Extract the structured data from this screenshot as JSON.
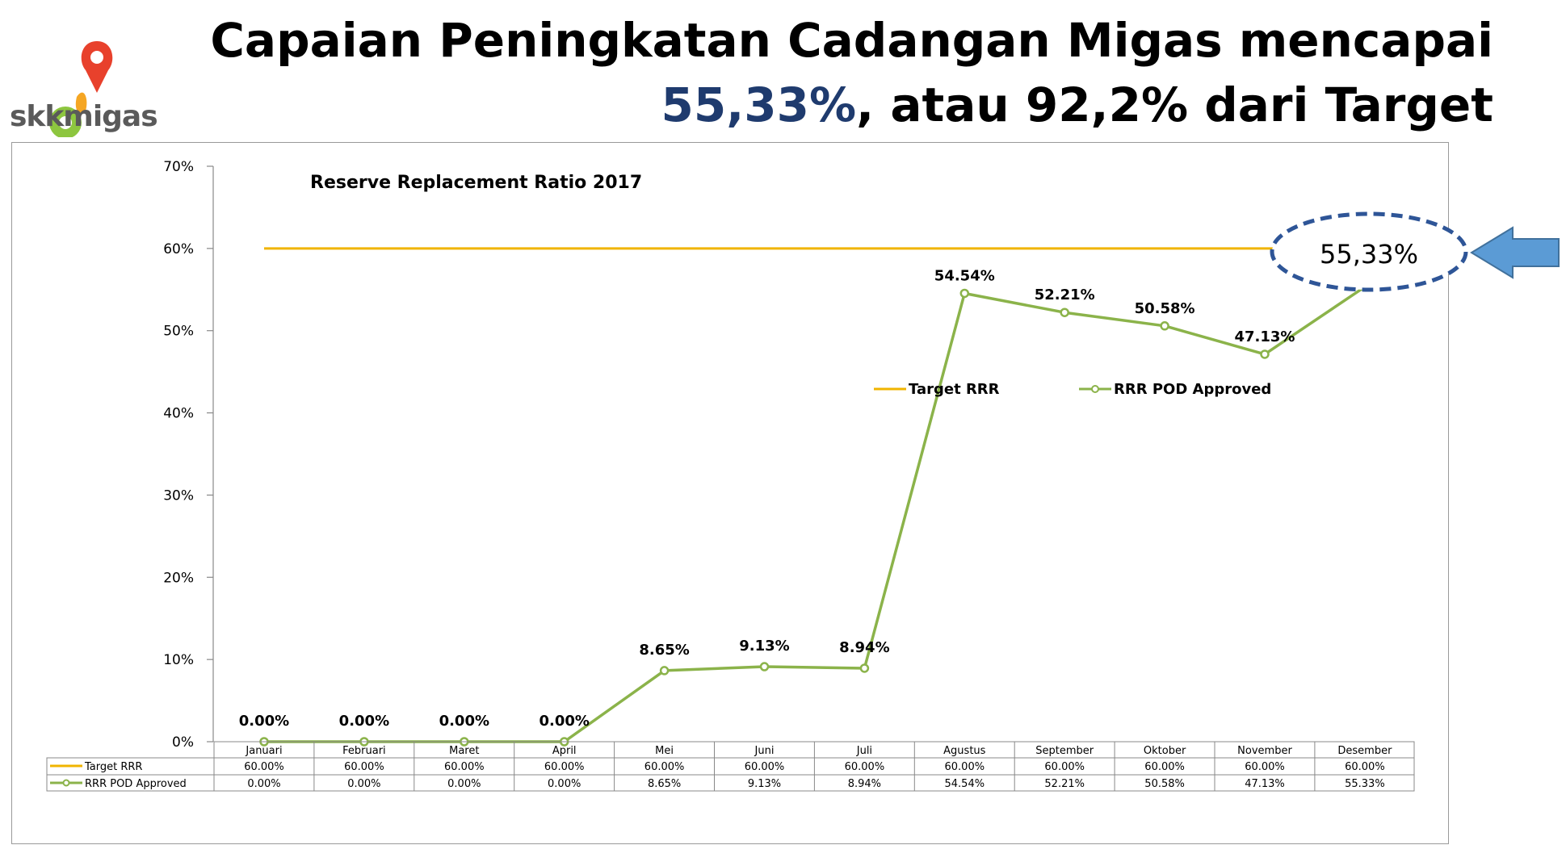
{
  "header": {
    "title_line1": "Capaian Peningkatan Cadangan Migas mencapai",
    "title_highlight": "55,33%",
    "title_line2_rest": ", atau 92,2% dari Target"
  },
  "logo": {
    "text": "skkmigas",
    "icon": "location-pin-icon",
    "pin_color": "#e8412c",
    "leaf_color": "#8dc63f"
  },
  "callout": {
    "text": "55,33%",
    "arrow_icon": "arrow-left-icon",
    "arrow_color": "#5b9bd5",
    "ellipse_color": "#2e5597"
  },
  "chart_data": {
    "type": "line",
    "title": "Reserve Replacement Ratio 2017",
    "categories": [
      "Januari",
      "Februari",
      "Maret",
      "April",
      "Mei",
      "Juni",
      "Juli",
      "Agustus",
      "September",
      "Oktober",
      "November",
      "Desember"
    ],
    "ylim": [
      0,
      70
    ],
    "yticks": [
      "0%",
      "10%",
      "20%",
      "30%",
      "40%",
      "50%",
      "60%",
      "70%"
    ],
    "ytick_values": [
      0,
      10,
      20,
      30,
      40,
      50,
      60,
      70
    ],
    "legend_position": "right",
    "series": [
      {
        "name": "Target RRR",
        "color": "#f0b400",
        "values": [
          60,
          60,
          60,
          60,
          60,
          60,
          60,
          60,
          60,
          60,
          60,
          60
        ],
        "table_labels": [
          "60.00%",
          "60.00%",
          "60.00%",
          "60.00%",
          "60.00%",
          "60.00%",
          "60.00%",
          "60.00%",
          "60.00%",
          "60.00%",
          "60.00%",
          "60.00%"
        ]
      },
      {
        "name": "RRR POD Approved",
        "color": "#8bb34a",
        "values": [
          0,
          0,
          0,
          0,
          8.65,
          9.13,
          8.94,
          54.54,
          52.21,
          50.58,
          47.13,
          55.33
        ],
        "point_labels": [
          "0.00%",
          "0.00%",
          "0.00%",
          "0.00%",
          "8.65%",
          "9.13%",
          "8.94%",
          "54.54%",
          "52.21%",
          "50.58%",
          "47.13%",
          ""
        ],
        "table_labels": [
          "0.00%",
          "0.00%",
          "0.00%",
          "0.00%",
          "8.65%",
          "9.13%",
          "8.94%",
          "54.54%",
          "52.21%",
          "50.58%",
          "47.13%",
          "55.33%"
        ]
      }
    ]
  }
}
